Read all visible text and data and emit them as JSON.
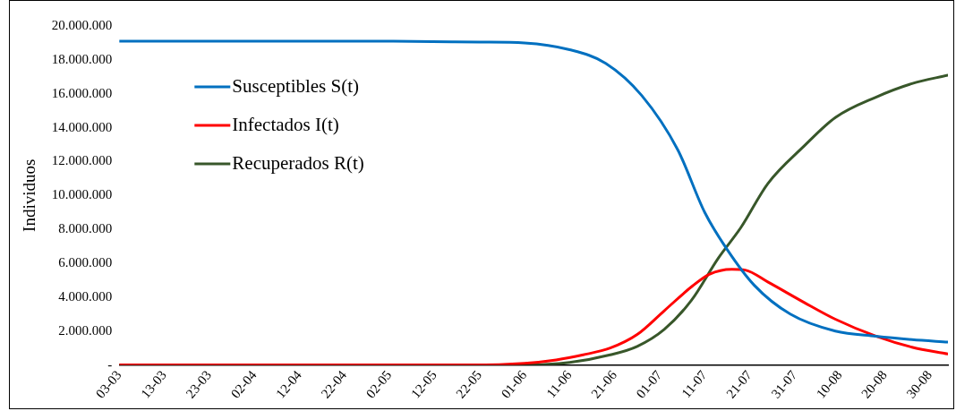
{
  "chart_data": {
    "type": "line",
    "ylabel": "Individuos",
    "legend": "top left",
    "grid": false,
    "marker": "none",
    "line_style": "solid",
    "xlim": [
      "--03-03",
      "--09-03"
    ],
    "xticks": [
      {
        "value": "--03-03",
        "label": "03-03"
      },
      {
        "value": "--03-13",
        "label": "13-03"
      },
      {
        "value": "--03-23",
        "label": "23-03"
      },
      {
        "value": "--04-02",
        "label": "02-04"
      },
      {
        "value": "--04-12",
        "label": "12-04"
      },
      {
        "value": "--04-22",
        "label": "22-04"
      },
      {
        "value": "--05-02",
        "label": "02-05"
      },
      {
        "value": "--05-12",
        "label": "12-05"
      },
      {
        "value": "--05-22",
        "label": "22-05"
      },
      {
        "value": "--06-01",
        "label": "01-06"
      },
      {
        "value": "--06-11",
        "label": "11-06"
      },
      {
        "value": "--06-21",
        "label": "21-06"
      },
      {
        "value": "--07-01",
        "label": "01-07"
      },
      {
        "value": "--07-11",
        "label": "11-07"
      },
      {
        "value": "--07-21",
        "label": "21-07"
      },
      {
        "value": "--07-31",
        "label": "31-07"
      },
      {
        "value": "--08-10",
        "label": "10-08"
      },
      {
        "value": "--08-20",
        "label": "20-08"
      },
      {
        "value": "--08-30",
        "label": "30-08"
      }
    ],
    "ylim": [
      0,
      20000000
    ],
    "yticks": [
      {
        "value": 0,
        "label": "-"
      },
      {
        "value": 2000000,
        "label": "2.000.000"
      },
      {
        "value": 4000000,
        "label": "4.000.000"
      },
      {
        "value": 6000000,
        "label": "6.000.000"
      },
      {
        "value": 8000000,
        "label": "8.000.000"
      },
      {
        "value": 10000000,
        "label": "10.000.000"
      },
      {
        "value": 12000000,
        "label": "12.000.000"
      },
      {
        "value": 14000000,
        "label": "14.000.000"
      },
      {
        "value": 16000000,
        "label": "16.000.000"
      },
      {
        "value": 18000000,
        "label": "18.000.000"
      },
      {
        "value": 20000000,
        "label": "20.000.000"
      }
    ],
    "series": [
      {
        "name": "Susceptibles S(t)",
        "color": "#0070c0",
        "x": [
          "--03-03",
          "--05-02",
          "--05-22",
          "--06-01",
          "--06-11",
          "--06-19",
          "--06-27",
          "--07-05",
          "--07-11",
          "--07-16",
          "--07-22",
          "--07-30",
          "--08-09",
          "--08-18",
          "--08-26",
          "--09-03"
        ],
        "values": [
          19100000,
          19100000,
          19050000,
          19000000,
          18600000,
          17800000,
          15900000,
          12700000,
          9000000,
          6800000,
          4700000,
          3000000,
          2000000,
          1700000,
          1500000,
          1350000
        ]
      },
      {
        "name": "Infectados I(t)",
        "color": "#ff0000",
        "x": [
          "--03-03",
          "--05-20",
          "--06-01",
          "--06-08",
          "--06-14",
          "--06-20",
          "--06-26",
          "--07-02",
          "--07-08",
          "--07-12",
          "--07-17",
          "--07-20",
          "--07-25",
          "--08-02",
          "--08-09",
          "--08-18",
          "--08-26",
          "--09-03"
        ],
        "values": [
          0,
          0,
          100000,
          300000,
          600000,
          1000000,
          1800000,
          3200000,
          4600000,
          5350000,
          5650000,
          5600000,
          4900000,
          3700000,
          2700000,
          1700000,
          1050000,
          650000
        ]
      },
      {
        "name": "Recuperados R(t)",
        "color": "#38572a",
        "x": [
          "--03-03",
          "--06-01",
          "--06-11",
          "--06-20",
          "--06-26",
          "--07-02",
          "--07-08",
          "--07-14",
          "--07-19",
          "--07-25",
          "--08-02",
          "--08-09",
          "--08-18",
          "--08-26",
          "--09-03"
        ],
        "values": [
          0,
          0,
          150000,
          600000,
          1100000,
          2100000,
          3800000,
          6300000,
          8100000,
          10700000,
          12900000,
          14600000,
          15800000,
          16600000,
          17100000
        ]
      }
    ]
  }
}
